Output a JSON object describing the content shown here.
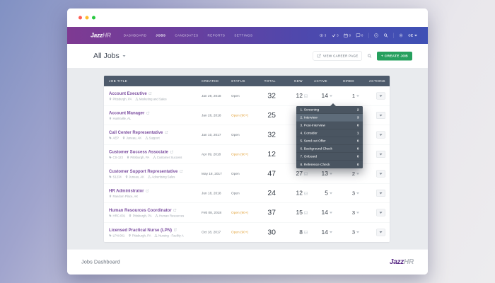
{
  "navbar": {
    "logo": {
      "part1": "Jazz",
      "part2": "HR"
    },
    "items": [
      {
        "label": "DASHBOARD"
      },
      {
        "label": "JOBS"
      },
      {
        "label": "CANDIDATES"
      },
      {
        "label": "REPORTS"
      },
      {
        "label": "SETTINGS"
      }
    ],
    "active_item": "JOBS",
    "status": [
      {
        "icon": "eye",
        "count": "3"
      },
      {
        "icon": "check",
        "count": "3"
      },
      {
        "icon": "calendar",
        "count": "0"
      },
      {
        "icon": "chat",
        "count": "0"
      }
    ],
    "user": {
      "initials": "CE"
    }
  },
  "toolbar": {
    "title": "All Jobs",
    "view_career_page_label": "VIEW CAREER PAGE",
    "create_job_label": "+ CREATE JOB"
  },
  "table": {
    "headers": [
      "JOB TITLE",
      "CREATED",
      "STATUS",
      "TOTAL",
      "NEW",
      "ACTIVE",
      "HIRED",
      "ACTIONS"
    ],
    "rows": [
      {
        "title": "Account Executive",
        "meta": {
          "location": "Pittsburgh, PA",
          "department": "Marketing and Sales"
        },
        "created": "Jan 29, 2018",
        "status": "Open",
        "total": "32",
        "new": "12",
        "active": "14",
        "hired": "1"
      },
      {
        "title": "Account Manager",
        "meta": {
          "location": "Huntsville, AL"
        },
        "created": "Jan 26, 2018",
        "status": "Open (90+)",
        "total": "25",
        "new": "",
        "active": "",
        "hired": ""
      },
      {
        "title": "Call Center Representative",
        "meta": {
          "code": "AEP",
          "location": "Juneau, AK",
          "department": "Support"
        },
        "created": "Jan 10, 2017",
        "status": "Open",
        "total": "32",
        "new": "",
        "active": "",
        "hired": ""
      },
      {
        "title": "Customer Success Associate",
        "meta": {
          "code": "CS-123",
          "location": "Pittsburgh, PA",
          "department": "Customer Success"
        },
        "created": "Apr 09, 2018",
        "status": "Open (90+)",
        "total": "12",
        "new": "",
        "active": "",
        "hired": ""
      },
      {
        "title": "Customer Support Representative",
        "meta": {
          "code": "S1234",
          "location": "Juneau, AK",
          "department": "Advertising Sales"
        },
        "created": "May 18, 2017",
        "status": "Open",
        "total": "47",
        "new": "27",
        "active": "13",
        "hired": "2"
      },
      {
        "title": "HR Administrator",
        "meta": {
          "location": "Random Place, AK"
        },
        "created": "Jun 18, 2018",
        "status": "Open",
        "total": "24",
        "new": "12",
        "active": "5",
        "hired": "3"
      },
      {
        "title": "Human Resources Coordinator",
        "meta": {
          "code": "HRC-001",
          "location": "Pittsburgh, PA",
          "department": "Human Resources"
        },
        "created": "Feb 08, 2018",
        "status": "Open (90+)",
        "total": "37",
        "new": "15",
        "active": "14",
        "hired": "3"
      },
      {
        "title": "Licensed Practical Nurse (LPN)",
        "meta": {
          "code": "LPN-001",
          "location": "Pittsburgh, PA",
          "department": "Nursing - Facility A"
        },
        "created": "Oct 18, 2017",
        "status": "Open (90+)",
        "total": "30",
        "new": "8",
        "active": "14",
        "hired": "3"
      }
    ]
  },
  "stage_dropdown": {
    "items": [
      {
        "label": "1. Screening",
        "count": "2"
      },
      {
        "label": "2. Interview",
        "count": "3",
        "highlighted": true
      },
      {
        "label": "3. Post-Interview",
        "count": "0"
      },
      {
        "label": "4. Consider",
        "count": "1"
      },
      {
        "label": "5. Send out Offer",
        "count": "0"
      },
      {
        "label": "6. Background Check",
        "count": "0"
      },
      {
        "label": "7. Onboard",
        "count": "0"
      },
      {
        "label": "8. Reference Check",
        "count": "0"
      }
    ]
  },
  "footer": {
    "label": "Jobs Dashboard",
    "logo": {
      "part1": "Jazz",
      "part2": "HR"
    }
  },
  "colors": {
    "accent_green": "#26a05e",
    "link_purple": "#7c4ea0",
    "status_amber": "#e2a33d",
    "header_slate": "#4d5a6b",
    "nav_gradient_start": "#7e3a92",
    "nav_gradient_end": "#3f51b5"
  }
}
